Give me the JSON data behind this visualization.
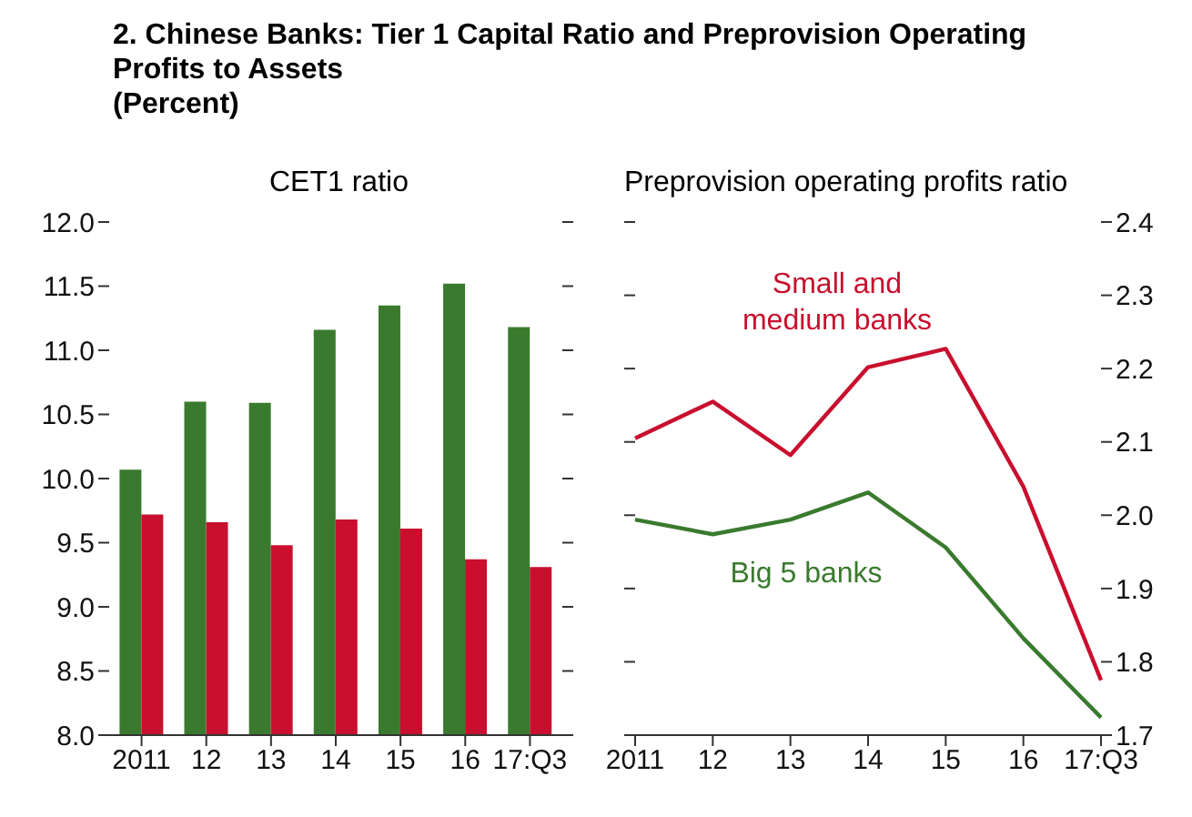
{
  "chart_data": [
    {
      "type": "bar",
      "title": "CET1 ratio",
      "annotations": [
        "2. Chinese Banks: Tier 1 Capital Ratio and Preprovision Operating Profits to Assets",
        "(Percent)"
      ],
      "categories": [
        "2011",
        "12",
        "13",
        "14",
        "15",
        "16",
        "17:Q3"
      ],
      "series": [
        {
          "color": "#3a7a2e",
          "values": [
            10.07,
            10.6,
            10.59,
            11.16,
            11.35,
            11.52,
            11.18
          ]
        },
        {
          "color": "#c8102e",
          "values": [
            9.72,
            9.66,
            9.48,
            9.68,
            9.61,
            9.37,
            9.31
          ]
        }
      ],
      "ylim": [
        8.0,
        12.0
      ],
      "yticks": [
        {
          "value": 8,
          "label": "8.0"
        },
        8.5,
        {
          "value": 9,
          "label": "9.0"
        },
        9.5,
        {
          "value": 10,
          "label": "10.0"
        },
        10.5,
        {
          "value": 11,
          "label": "11.0"
        },
        11.5,
        {
          "value": 12,
          "label": "12.0"
        }
      ]
    },
    {
      "type": "line",
      "title": "Preprovision operating profits ratio",
      "categories": [
        "2011",
        "12",
        "13",
        "14",
        "15",
        "16",
        "17:Q3"
      ],
      "series": [
        {
          "name": "Small and medium banks",
          "color": "#c8102e",
          "axis": "y2",
          "values": [
            2.105,
            2.155,
            2.082,
            2.202,
            2.227,
            2.039,
            1.775
          ]
        },
        {
          "name": "Big 5 banks",
          "color": "#3a7a2e",
          "axis": "y2",
          "values": [
            1.994,
            1.974,
            1.994,
            2.031,
            1.956,
            1.832,
            1.724
          ]
        }
      ],
      "y2lim": [
        1.7,
        2.4
      ],
      "y2ticks": [
        1.7,
        1.8,
        1.9,
        {
          "value": 2,
          "label": "2.0"
        },
        2.1,
        2.2,
        2.3,
        2.4
      ],
      "marker": "none",
      "line_style": "solid"
    }
  ]
}
